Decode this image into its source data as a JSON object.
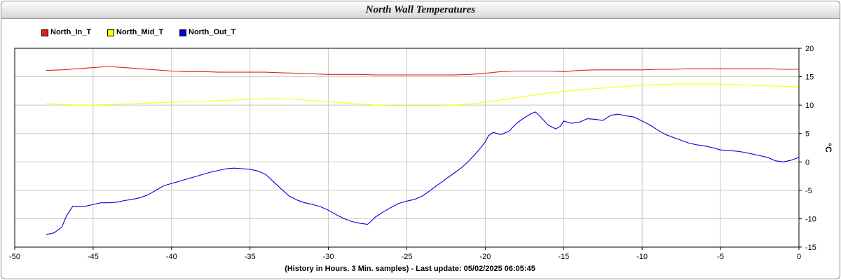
{
  "title": "North Wall Temperatures",
  "chart_data": {
    "type": "line",
    "title": "North Wall Temperatures",
    "xlabel": "(History in Hours. 3 Min. samples) - Last update: 05/02/2025 06:05:45",
    "ylabel": "°C",
    "xlim": [
      -50,
      0
    ],
    "ylim": [
      -15,
      20
    ],
    "xticks": [
      -50,
      -45,
      -40,
      -35,
      -30,
      -25,
      -20,
      -15,
      -10,
      -5,
      0
    ],
    "yticks": [
      -15,
      -10,
      -5,
      0,
      5,
      10,
      15,
      20
    ],
    "grid": true,
    "legend_position": "top-left",
    "series": [
      {
        "name": "North_In_T",
        "color": "#e02020",
        "x": [
          -48,
          -47,
          -46,
          -45,
          -44,
          -43,
          -42,
          -41,
          -40,
          -39,
          -38,
          -37,
          -36,
          -35,
          -34,
          -33,
          -32,
          -31,
          -30,
          -29,
          -28,
          -27,
          -26,
          -25,
          -24,
          -23,
          -22,
          -21,
          -20,
          -19,
          -18,
          -17,
          -16,
          -15,
          -14,
          -13,
          -12,
          -11,
          -10,
          -9,
          -8,
          -7,
          -6,
          -5,
          -4,
          -3,
          -2,
          -1,
          0
        ],
        "y": [
          16.1,
          16.2,
          16.4,
          16.6,
          16.8,
          16.6,
          16.4,
          16.2,
          16.0,
          15.9,
          15.9,
          15.8,
          15.8,
          15.8,
          15.8,
          15.7,
          15.6,
          15.5,
          15.4,
          15.4,
          15.4,
          15.3,
          15.3,
          15.3,
          15.3,
          15.3,
          15.3,
          15.4,
          15.6,
          15.9,
          16.0,
          16.0,
          16.0,
          15.9,
          16.1,
          16.2,
          16.2,
          16.2,
          16.2,
          16.3,
          16.3,
          16.4,
          16.4,
          16.4,
          16.4,
          16.4,
          16.4,
          16.3,
          16.3
        ]
      },
      {
        "name": "North_Mid_T",
        "color": "#ffff00",
        "x": [
          -48,
          -47,
          -46,
          -45,
          -44,
          -43,
          -42,
          -41,
          -40,
          -39,
          -38,
          -37,
          -36,
          -35,
          -34,
          -33,
          -32,
          -31,
          -30,
          -29,
          -28,
          -27,
          -26,
          -25,
          -24,
          -23,
          -22,
          -21,
          -20,
          -19,
          -18,
          -17,
          -16,
          -15,
          -14,
          -13,
          -12,
          -11,
          -10,
          -9,
          -8,
          -7,
          -6,
          -5,
          -4,
          -3,
          -2,
          -1,
          0
        ],
        "y": [
          10.3,
          10.1,
          10.0,
          10.0,
          10.1,
          10.2,
          10.3,
          10.4,
          10.5,
          10.6,
          10.7,
          10.8,
          10.9,
          11.0,
          11.1,
          11.1,
          11.0,
          10.8,
          10.6,
          10.4,
          10.2,
          10.0,
          9.9,
          9.9,
          9.9,
          9.9,
          10.0,
          10.2,
          10.5,
          10.9,
          11.3,
          11.7,
          12.1,
          12.4,
          12.7,
          12.9,
          13.1,
          13.3,
          13.5,
          13.6,
          13.7,
          13.7,
          13.7,
          13.7,
          13.6,
          13.5,
          13.4,
          13.3,
          13.2
        ]
      },
      {
        "name": "North_Out_T",
        "color": "#0000e0",
        "x": [
          -48,
          -47.5,
          -47,
          -46.7,
          -46.3,
          -46,
          -45.5,
          -45,
          -44.5,
          -44,
          -43.5,
          -43,
          -42.5,
          -42,
          -41.5,
          -41,
          -40.5,
          -40,
          -39.5,
          -39,
          -38.5,
          -38,
          -37.5,
          -37,
          -36.5,
          -36,
          -35.5,
          -35,
          -34.5,
          -34,
          -33.5,
          -33,
          -32.5,
          -32,
          -31.5,
          -31,
          -30.5,
          -30,
          -29.5,
          -29,
          -28.5,
          -28,
          -27.5,
          -27.3,
          -27,
          -26.5,
          -26,
          -25.5,
          -25,
          -24.5,
          -24,
          -23.5,
          -23,
          -22.5,
          -22,
          -21.5,
          -21,
          -20.5,
          -20,
          -19.8,
          -19.5,
          -19,
          -18.5,
          -18,
          -17.5,
          -17,
          -16.8,
          -16.5,
          -16,
          -15.5,
          -15.2,
          -15,
          -14.5,
          -14,
          -13.5,
          -13,
          -12.5,
          -12,
          -11.5,
          -11,
          -10.5,
          -10,
          -9.5,
          -9,
          -8.5,
          -8,
          -7.5,
          -7,
          -6.5,
          -6,
          -5.5,
          -5,
          -4.5,
          -4,
          -3.5,
          -3,
          -2.5,
          -2,
          -1.5,
          -1,
          -0.5,
          0
        ],
        "y": [
          -12.8,
          -12.5,
          -11.5,
          -9.5,
          -7.8,
          -7.9,
          -7.8,
          -7.5,
          -7.2,
          -7.2,
          -7.1,
          -6.8,
          -6.6,
          -6.3,
          -5.8,
          -5.0,
          -4.2,
          -3.8,
          -3.4,
          -3.0,
          -2.6,
          -2.2,
          -1.8,
          -1.5,
          -1.2,
          -1.1,
          -1.2,
          -1.3,
          -1.6,
          -2.2,
          -3.5,
          -4.8,
          -6.0,
          -6.7,
          -7.2,
          -7.5,
          -7.9,
          -8.5,
          -9.3,
          -10.0,
          -10.5,
          -10.8,
          -11.0,
          -10.5,
          -9.7,
          -8.8,
          -8.0,
          -7.3,
          -6.9,
          -6.6,
          -6.0,
          -5.0,
          -4.0,
          -3.0,
          -2.0,
          -1.0,
          0.3,
          1.8,
          3.5,
          4.6,
          5.2,
          4.8,
          5.4,
          6.8,
          7.8,
          8.6,
          8.8,
          8.0,
          6.5,
          5.8,
          6.3,
          7.2,
          6.8,
          7.0,
          7.6,
          7.5,
          7.3,
          8.2,
          8.4,
          8.1,
          7.9,
          7.2,
          6.5,
          5.6,
          4.8,
          4.3,
          3.8,
          3.3,
          3.0,
          2.8,
          2.5,
          2.1,
          2.0,
          1.9,
          1.7,
          1.4,
          1.1,
          0.8,
          0.2,
          0.0,
          0.3,
          0.8
        ]
      }
    ]
  }
}
